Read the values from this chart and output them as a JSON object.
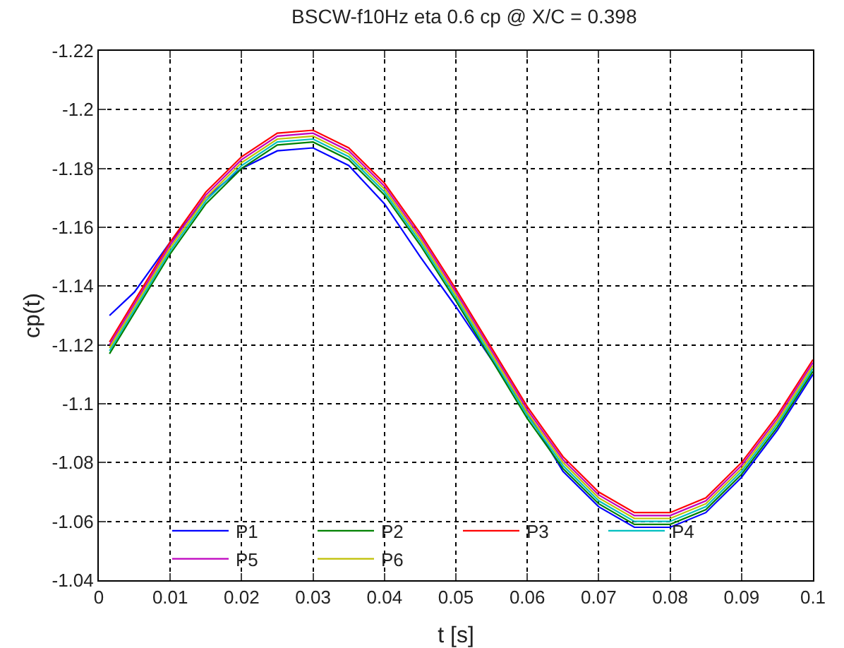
{
  "chart_data": {
    "type": "line",
    "title": "BSCW-f10Hz eta 0.6 cp @ X/C = 0.398",
    "xlabel": "t [s]",
    "ylabel": "cp(t)",
    "x": [
      0.0015,
      0.005,
      0.01,
      0.015,
      0.02,
      0.025,
      0.03,
      0.035,
      0.04,
      0.045,
      0.05,
      0.055,
      0.06,
      0.065,
      0.07,
      0.075,
      0.08,
      0.085,
      0.09,
      0.095,
      0.1
    ],
    "series": [
      {
        "name": "P1",
        "color": "#0000ff",
        "values": [
          -1.13,
          -1.138,
          -1.155,
          -1.17,
          -1.18,
          -1.186,
          -1.187,
          -1.181,
          -1.168,
          -1.15,
          -1.133,
          -1.115,
          -1.097,
          -1.077,
          -1.065,
          -1.058,
          -1.058,
          -1.063,
          -1.075,
          -1.091,
          -1.11
        ]
      },
      {
        "name": "P2",
        "color": "#008000",
        "values": [
          -1.117,
          -1.131,
          -1.151,
          -1.168,
          -1.18,
          -1.188,
          -1.189,
          -1.183,
          -1.171,
          -1.154,
          -1.135,
          -1.115,
          -1.095,
          -1.078,
          -1.066,
          -1.059,
          -1.059,
          -1.064,
          -1.076,
          -1.092,
          -1.111
        ]
      },
      {
        "name": "P3",
        "color": "#ff0000",
        "values": [
          -1.121,
          -1.135,
          -1.155,
          -1.172,
          -1.184,
          -1.192,
          -1.193,
          -1.187,
          -1.175,
          -1.158,
          -1.139,
          -1.119,
          -1.099,
          -1.082,
          -1.07,
          -1.063,
          -1.063,
          -1.068,
          -1.08,
          -1.096,
          -1.115
        ]
      },
      {
        "name": "P4",
        "color": "#00bfbf",
        "values": [
          -1.118,
          -1.132,
          -1.152,
          -1.169,
          -1.181,
          -1.189,
          -1.19,
          -1.184,
          -1.172,
          -1.155,
          -1.136,
          -1.116,
          -1.096,
          -1.079,
          -1.067,
          -1.06,
          -1.06,
          -1.065,
          -1.077,
          -1.093,
          -1.112
        ]
      },
      {
        "name": "P5",
        "color": "#bf00bf",
        "values": [
          -1.12,
          -1.134,
          -1.154,
          -1.171,
          -1.183,
          -1.191,
          -1.192,
          -1.186,
          -1.174,
          -1.157,
          -1.138,
          -1.118,
          -1.098,
          -1.081,
          -1.069,
          -1.062,
          -1.062,
          -1.067,
          -1.079,
          -1.095,
          -1.114
        ]
      },
      {
        "name": "P6",
        "color": "#bfbf00",
        "values": [
          -1.119,
          -1.133,
          -1.153,
          -1.17,
          -1.182,
          -1.19,
          -1.191,
          -1.185,
          -1.173,
          -1.156,
          -1.137,
          -1.117,
          -1.097,
          -1.08,
          -1.068,
          -1.061,
          -1.061,
          -1.066,
          -1.078,
          -1.094,
          -1.113
        ]
      }
    ],
    "xlim": [
      0,
      0.1
    ],
    "xticks": [
      0,
      0.01,
      0.02,
      0.03,
      0.04,
      0.05,
      0.06,
      0.07,
      0.08,
      0.09,
      0.1
    ],
    "ylim": [
      -1.04,
      -1.22
    ],
    "yticks": [
      -1.22,
      -1.2,
      -1.18,
      -1.16,
      -1.14,
      -1.12,
      -1.1,
      -1.08,
      -1.06,
      -1.04
    ],
    "grid": true,
    "legend": "bottom",
    "line_style": "solid"
  }
}
